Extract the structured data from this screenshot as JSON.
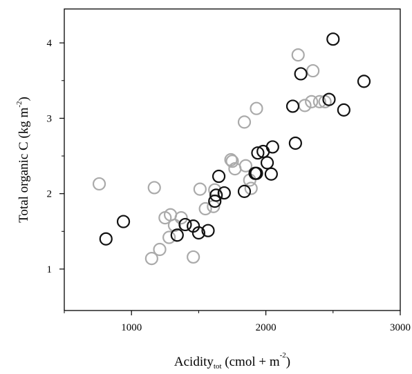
{
  "chart_data": {
    "type": "scatter",
    "xlabel": {
      "main": "Acidity",
      "subscript": "tot",
      "rest": "(cmol + m",
      "superscript": "-2",
      "close": ")"
    },
    "ylabel": {
      "main": "Total  organic C (kg m",
      "superscript": "-2",
      "close": ")"
    },
    "xlim": [
      500,
      3000
    ],
    "ylim": [
      0.45,
      4.45
    ],
    "xticks": [
      1000,
      2000,
      3000
    ],
    "xticks_minor": [
      500,
      1500,
      2500
    ],
    "yticks": [
      1,
      2,
      3,
      4
    ],
    "yticks_minor": [
      1.5,
      2.5,
      3.5
    ],
    "grid": false,
    "series": [
      {
        "color": "#aaaaaa",
        "points": [
          [
            760,
            2.13
          ],
          [
            1170,
            2.08
          ],
          [
            1150,
            1.14
          ],
          [
            1210,
            1.26
          ],
          [
            1250,
            1.68
          ],
          [
            1290,
            1.72
          ],
          [
            1280,
            1.42
          ],
          [
            1320,
            1.58
          ],
          [
            1370,
            1.68
          ],
          [
            1460,
            1.16
          ],
          [
            1510,
            2.06
          ],
          [
            1550,
            1.8
          ],
          [
            1610,
            1.83
          ],
          [
            1620,
            2.05
          ],
          [
            1740,
            2.45
          ],
          [
            1750,
            2.43
          ],
          [
            1770,
            2.33
          ],
          [
            1840,
            2.95
          ],
          [
            1850,
            2.37
          ],
          [
            1880,
            2.18
          ],
          [
            1890,
            2.07
          ],
          [
            1930,
            3.13
          ],
          [
            2240,
            3.84
          ],
          [
            2290,
            3.17
          ],
          [
            2340,
            3.22
          ],
          [
            2350,
            3.63
          ],
          [
            2400,
            3.22
          ],
          [
            2440,
            3.22
          ]
        ]
      },
      {
        "color": "#111111",
        "points": [
          [
            810,
            1.4
          ],
          [
            940,
            1.63
          ],
          [
            1340,
            1.45
          ],
          [
            1400,
            1.59
          ],
          [
            1460,
            1.57
          ],
          [
            1500,
            1.48
          ],
          [
            1570,
            1.51
          ],
          [
            1620,
            1.9
          ],
          [
            1630,
            1.98
          ],
          [
            1650,
            2.23
          ],
          [
            1690,
            2.01
          ],
          [
            1840,
            2.03
          ],
          [
            1920,
            2.27
          ],
          [
            1930,
            2.27
          ],
          [
            1940,
            2.54
          ],
          [
            1980,
            2.56
          ],
          [
            2010,
            2.41
          ],
          [
            2040,
            2.26
          ],
          [
            2050,
            2.62
          ],
          [
            2200,
            3.16
          ],
          [
            2220,
            2.67
          ],
          [
            2260,
            3.59
          ],
          [
            2470,
            3.25
          ],
          [
            2500,
            4.05
          ],
          [
            2580,
            3.11
          ],
          [
            2730,
            3.49
          ]
        ]
      }
    ]
  }
}
